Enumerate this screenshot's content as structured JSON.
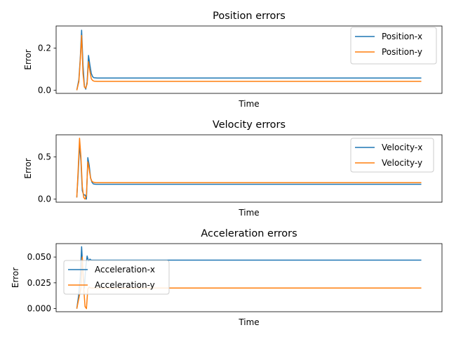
{
  "colors": {
    "series1": "#1f77b4",
    "series2": "#ff7f0e",
    "axes": "#000000"
  },
  "chart_data": [
    {
      "type": "line",
      "title": "Position errors",
      "xlabel": "Time",
      "ylabel": "Error",
      "xlim": [
        -0.06,
        1.06
      ],
      "ylim": [
        -0.015,
        0.305
      ],
      "yticks": [
        0.0,
        0.2
      ],
      "ytick_labels": [
        "0.0",
        "0.2"
      ],
      "grid": false,
      "legend_loc": "upper right",
      "series": [
        {
          "name": "Position-x",
          "x": [
            0.0,
            0.006,
            0.01,
            0.014,
            0.018,
            0.022,
            0.026,
            0.03,
            0.034,
            0.038,
            0.042,
            0.046,
            0.05,
            0.06,
            0.07,
            0.08,
            1.0
          ],
          "y": [
            0.0,
            0.05,
            0.15,
            0.285,
            0.12,
            0.02,
            0.005,
            0.04,
            0.165,
            0.12,
            0.08,
            0.064,
            0.059,
            0.058,
            0.058,
            0.058,
            0.058
          ]
        },
        {
          "name": "Position-y",
          "x": [
            0.0,
            0.006,
            0.01,
            0.014,
            0.018,
            0.022,
            0.026,
            0.03,
            0.034,
            0.038,
            0.042,
            0.046,
            0.05,
            0.06,
            0.07,
            0.08,
            1.0
          ],
          "y": [
            0.0,
            0.04,
            0.14,
            0.26,
            0.08,
            0.015,
            0.01,
            0.03,
            0.135,
            0.09,
            0.055,
            0.046,
            0.043,
            0.042,
            0.042,
            0.042,
            0.042
          ]
        }
      ]
    },
    {
      "type": "line",
      "title": "Velocity errors",
      "xlabel": "Time",
      "ylabel": "Error",
      "xlim": [
        -0.06,
        1.06
      ],
      "ylim": [
        -0.036,
        0.76
      ],
      "yticks": [
        0.0,
        0.5
      ],
      "ytick_labels": [
        "0.0",
        "0.5"
      ],
      "grid": false,
      "legend_loc": "upper right",
      "series": [
        {
          "name": "Velocity-x",
          "x": [
            0.0,
            0.004,
            0.008,
            0.012,
            0.016,
            0.02,
            0.024,
            0.028,
            0.032,
            0.036,
            0.04,
            0.044,
            0.048,
            0.055,
            0.065,
            1.0
          ],
          "y": [
            0.02,
            0.3,
            0.65,
            0.45,
            0.1,
            0.05,
            0.05,
            0.0,
            0.49,
            0.4,
            0.25,
            0.2,
            0.18,
            0.175,
            0.175,
            0.175
          ]
        },
        {
          "name": "Velocity-y",
          "x": [
            0.0,
            0.004,
            0.008,
            0.012,
            0.016,
            0.02,
            0.024,
            0.028,
            0.032,
            0.036,
            0.04,
            0.044,
            0.048,
            0.055,
            0.065,
            1.0
          ],
          "y": [
            0.02,
            0.35,
            0.72,
            0.5,
            0.15,
            0.02,
            0.0,
            0.05,
            0.44,
            0.35,
            0.25,
            0.21,
            0.2,
            0.195,
            0.195,
            0.195
          ]
        }
      ]
    },
    {
      "type": "line",
      "title": "Acceleration errors",
      "xlabel": "Time",
      "ylabel": "Error",
      "xlim": [
        -0.06,
        1.06
      ],
      "ylim": [
        -0.003,
        0.063
      ],
      "yticks": [
        0.0,
        0.025,
        0.05
      ],
      "ytick_labels": [
        "0.000",
        "0.025",
        "0.050"
      ],
      "grid": false,
      "legend_loc": "center left",
      "series": [
        {
          "name": "Acceleration-x",
          "x": [
            0.0,
            0.005,
            0.01,
            0.014,
            0.018,
            0.022,
            0.026,
            0.03,
            0.034,
            0.038,
            0.042,
            0.05,
            0.06,
            1.0
          ],
          "y": [
            0.0,
            0.012,
            0.03,
            0.06,
            0.035,
            0.02,
            0.04,
            0.051,
            0.046,
            0.048,
            0.047,
            0.047,
            0.047,
            0.047
          ]
        },
        {
          "name": "Acceleration-y",
          "x": [
            0.0,
            0.006,
            0.012,
            0.016,
            0.02,
            0.024,
            0.028,
            0.032,
            0.036,
            0.04,
            0.046,
            0.055,
            1.0
          ],
          "y": [
            0.0,
            0.01,
            0.02,
            0.05,
            0.02,
            0.002,
            0.0,
            0.019,
            0.021,
            0.02,
            0.02,
            0.02,
            0.02
          ]
        }
      ]
    }
  ]
}
